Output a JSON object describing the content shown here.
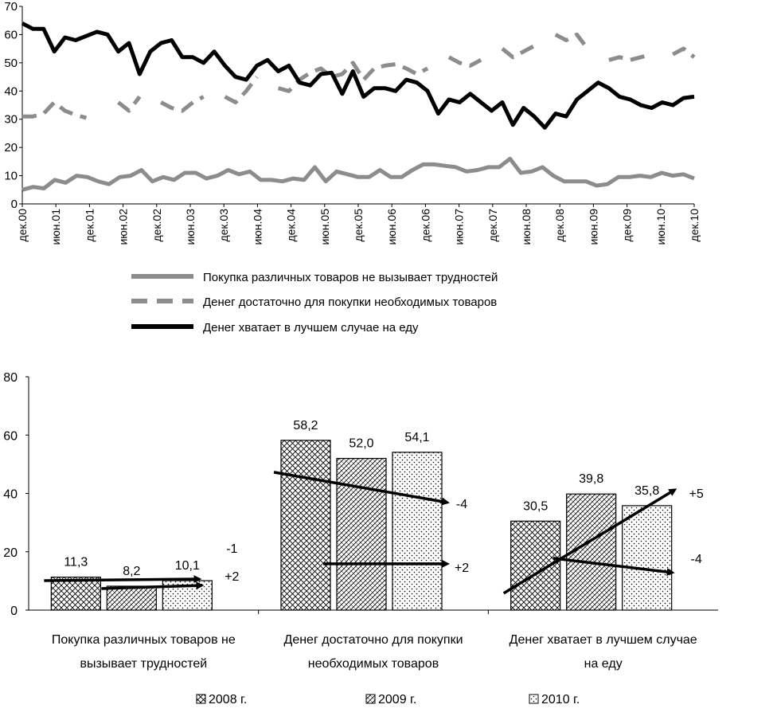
{
  "chart_data": [
    {
      "type": "line",
      "title": "",
      "ylim": [
        0,
        70
      ],
      "yticks": [
        "0",
        "10",
        "20",
        "30",
        "40",
        "50",
        "60",
        "70"
      ],
      "xtick_labels": [
        "дек.00",
        "июн.01",
        "дек.01",
        "июн.02",
        "дек.02",
        "июн.03",
        "дек.03",
        "июн.04",
        "дек.04",
        "июн.05",
        "дек.05",
        "июн.06",
        "дек.06",
        "июн.07",
        "дек.07",
        "июн.08",
        "дек.08",
        "июн.09",
        "дек.09",
        "июн.10",
        "дек.10"
      ],
      "series": [
        {
          "name": "Покупка различных товаров не вызывает трудностей",
          "color": "#8c8c8c",
          "style": "solid",
          "values": [
            5,
            6,
            5.5,
            8.5,
            7.5,
            10,
            9.5,
            8,
            7,
            9.5,
            10,
            12,
            8,
            9.5,
            8.5,
            11,
            11,
            9,
            10,
            12,
            10.5,
            11.5,
            8.5,
            8.5,
            8,
            9,
            8.5,
            13,
            8,
            11.5,
            10.5,
            9.5,
            9.5,
            12,
            9.5,
            9.5,
            12,
            14,
            14,
            13.5,
            13,
            11.5,
            12,
            13,
            13,
            16,
            11,
            11.5,
            13,
            10,
            8,
            8,
            8,
            6.5,
            7,
            9.5,
            9.5,
            10,
            9.5,
            11,
            10,
            10.5,
            9
          ]
        },
        {
          "name": "Денег достаточно для покупки необходимых товаров",
          "color": "#8c8c8c",
          "style": "dashed",
          "values": [
            31,
            31,
            32,
            36,
            33,
            31.5,
            30.5,
            null,
            null,
            36,
            33,
            38,
            null,
            36,
            34,
            33,
            36,
            38,
            null,
            38,
            36,
            40,
            45,
            null,
            41,
            40,
            44,
            46.5,
            48,
            45,
            46,
            50,
            44,
            48,
            49,
            49.5,
            48,
            46,
            48,
            null,
            52,
            50,
            49,
            51,
            null,
            55,
            52,
            54,
            56,
            null,
            60,
            58,
            60,
            55,
            null,
            51,
            52,
            51,
            52,
            53,
            null,
            53,
            55,
            52
          ]
        },
        {
          "name": "Денег хватает в лучшем случае на еду",
          "color": "#000000",
          "style": "solid",
          "values": [
            64,
            62,
            62,
            54,
            59,
            58,
            59.5,
            61,
            60,
            54,
            57,
            46,
            54,
            57,
            58,
            52,
            52,
            50,
            54,
            49,
            45,
            44,
            49,
            51,
            47,
            49,
            43,
            42,
            46,
            46.5,
            39,
            47,
            38,
            41,
            41,
            40,
            44,
            43,
            40,
            32,
            37,
            36,
            39,
            36,
            33,
            36,
            28,
            34,
            31,
            27,
            32,
            31,
            37,
            40,
            43,
            41,
            38,
            37,
            35,
            34,
            36,
            35,
            37.5,
            38
          ]
        }
      ]
    },
    {
      "type": "bar",
      "title": "",
      "ylim": [
        0,
        80
      ],
      "yticks": [
        "0",
        "20",
        "40",
        "60",
        "80"
      ],
      "categories": [
        "Покупка различных товаров не вызывает трудностей",
        "Денег достаточно для покупки необходимых товаров",
        "Денег хватает в лучшем случае на еду"
      ],
      "category_lines": [
        [
          "Покупка различных товаров не",
          "вызывает трудностей"
        ],
        [
          "Денег достаточно для покупки",
          "необходимых товаров"
        ],
        [
          "Денег хватает в лучшем случае",
          "на еду"
        ]
      ],
      "series": [
        {
          "name": "2008 г.",
          "pattern": "crosshatch",
          "values": [
            11.3,
            58.2,
            30.5
          ],
          "labels": [
            "11,3",
            "58,2",
            "30,5"
          ]
        },
        {
          "name": "2009 г.",
          "pattern": "diagonal",
          "values": [
            8.2,
            52.0,
            39.8
          ],
          "labels": [
            "8,2",
            "52,0",
            "39,8"
          ]
        },
        {
          "name": "2010 г.",
          "pattern": "dots",
          "values": [
            10.1,
            54.1,
            35.8
          ],
          "labels": [
            "10,1",
            "54,1",
            "35,8"
          ]
        }
      ],
      "change_annotations": [
        {
          "group": 0,
          "from": "2008 г.",
          "to": "2010 г.",
          "text": "-1"
        },
        {
          "group": 0,
          "from": "2009 г.",
          "to": "2010 г.",
          "text": "+2"
        },
        {
          "group": 1,
          "from": "2008 г.",
          "to": "2010 г.",
          "text": "-4"
        },
        {
          "group": 1,
          "from": "2009 г.",
          "to": "2010 г.",
          "text": "+2"
        },
        {
          "group": 2,
          "from": "2008 г.",
          "to": "2010 г.",
          "text": "+5"
        },
        {
          "group": 2,
          "from": "2009 г.",
          "to": "2010 г.",
          "text": "-4"
        }
      ]
    }
  ]
}
